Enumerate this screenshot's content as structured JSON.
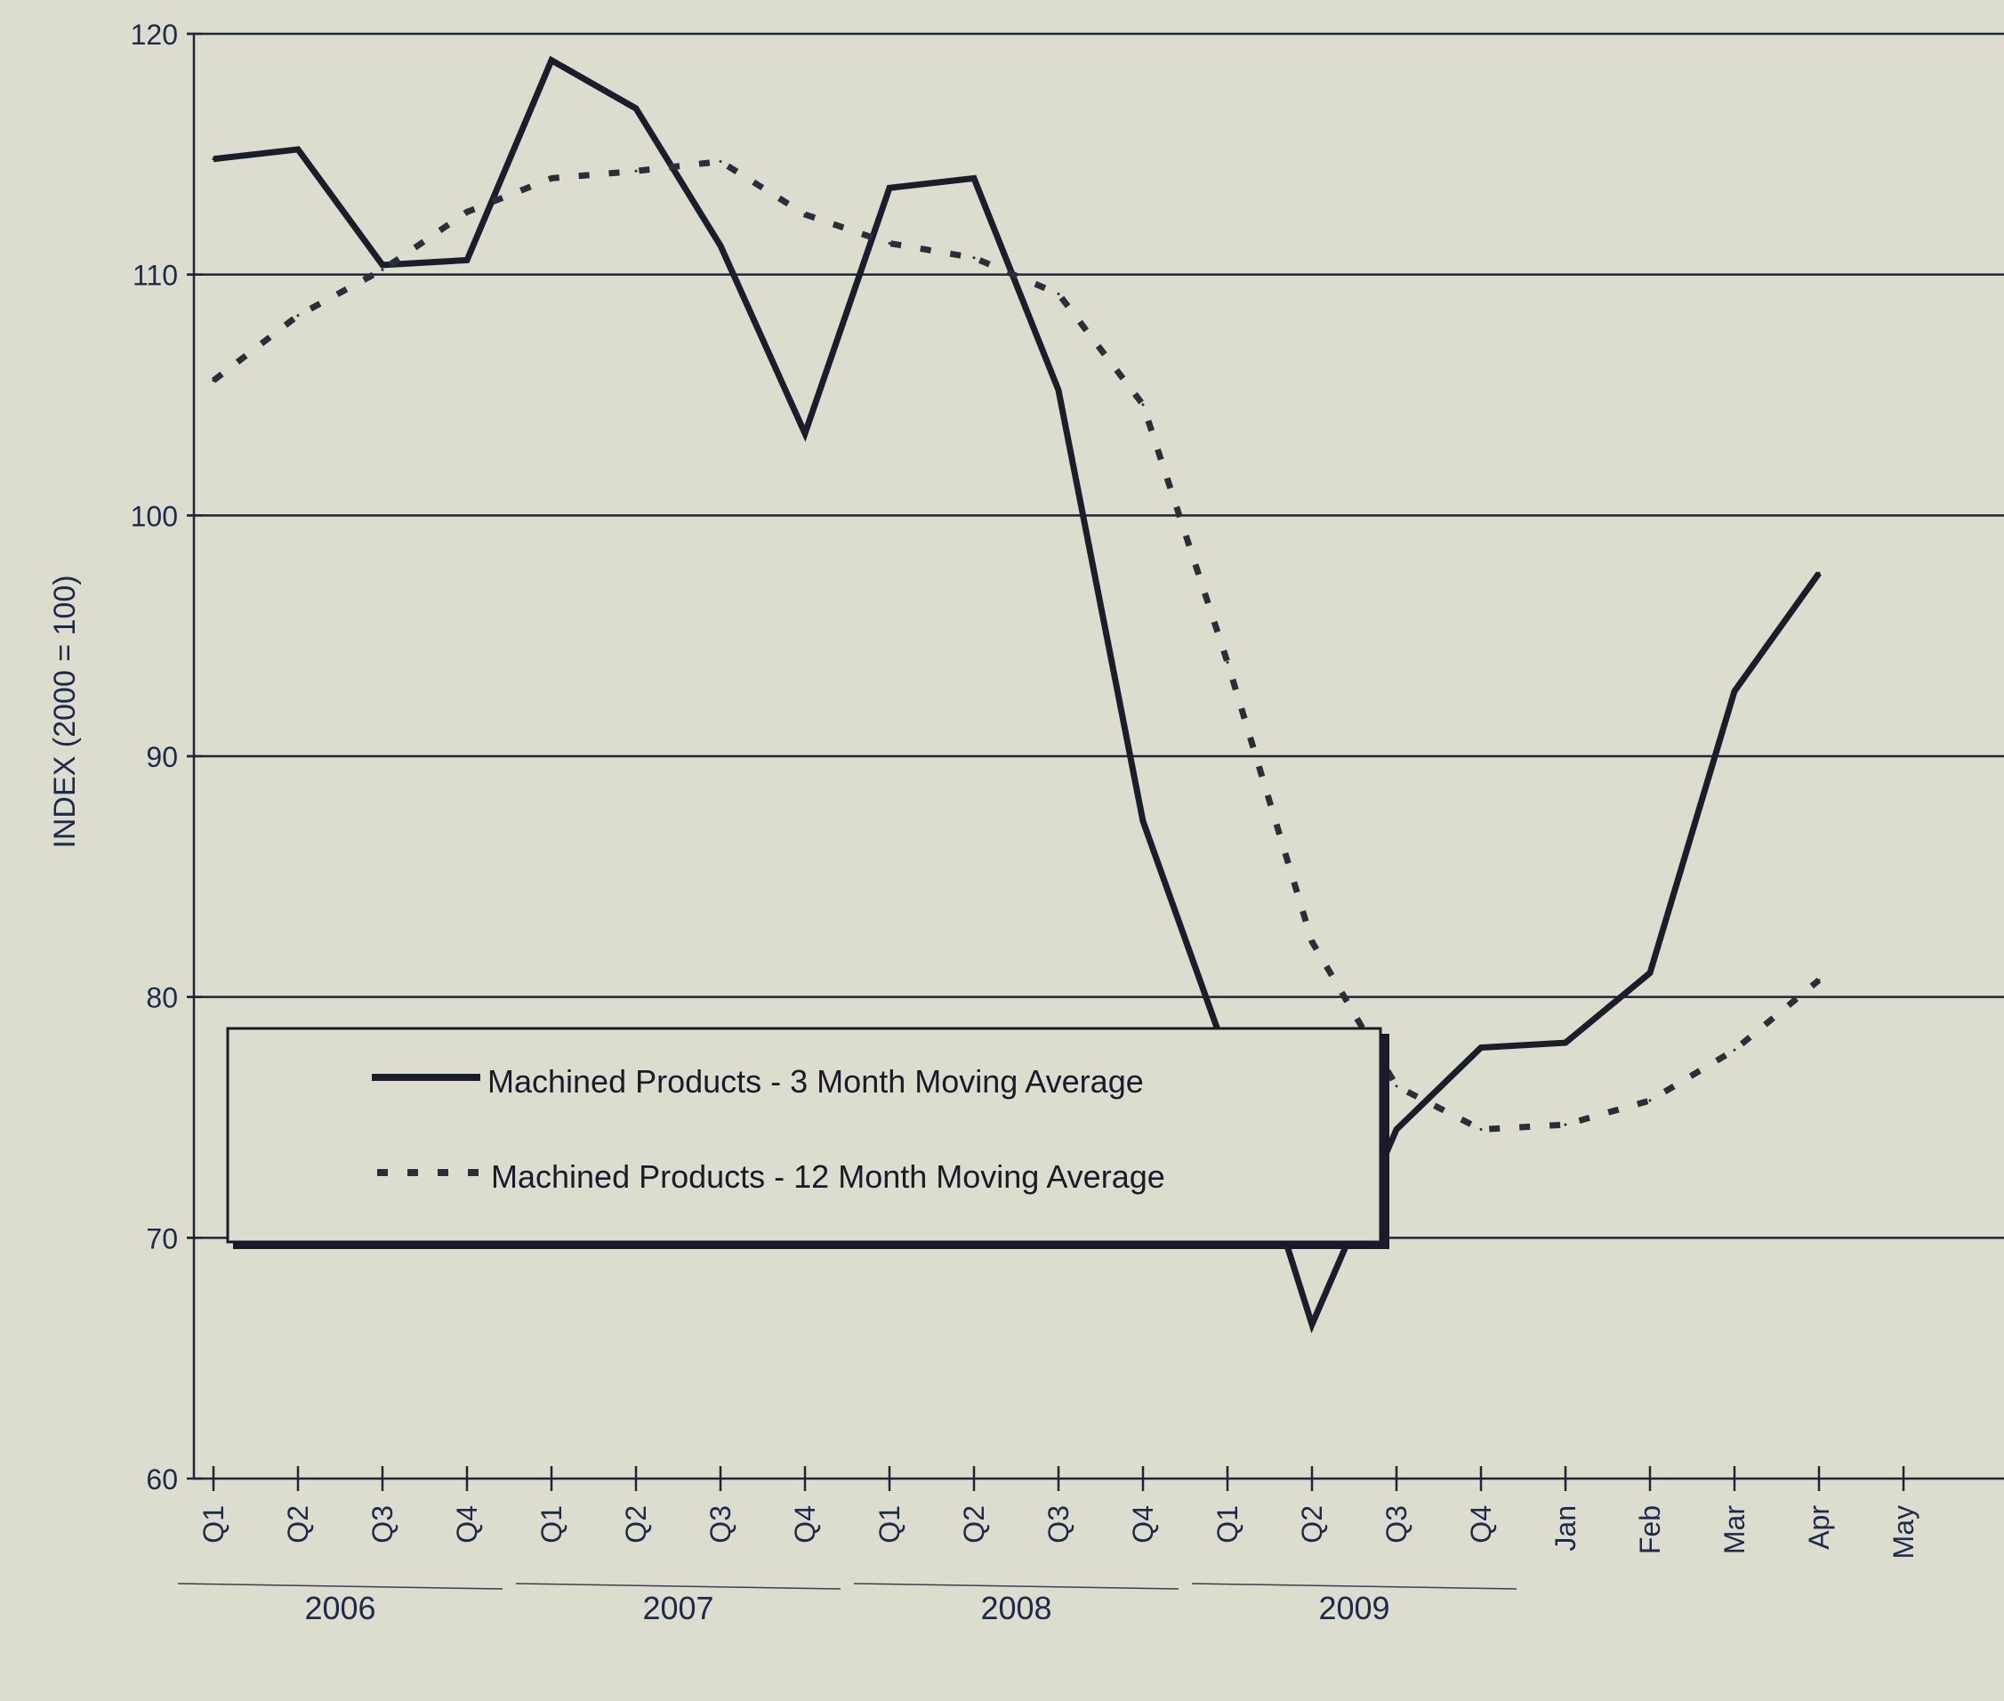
{
  "chart_data": {
    "type": "line",
    "ylabel": "INDEX (2000 = 100)",
    "ylim": [
      60,
      120
    ],
    "yticks": [
      60,
      70,
      80,
      90,
      100,
      110,
      120
    ],
    "grid": "horizontal",
    "x_tick_labels": [
      "Q1",
      "Q2",
      "Q3",
      "Q4",
      "Q1",
      "Q2",
      "Q3",
      "Q4",
      "Q1",
      "Q2",
      "Q3",
      "Q4",
      "Q1",
      "Q2",
      "Q3",
      "Q4",
      "Jan",
      "Feb",
      "Mar",
      "Apr",
      "May"
    ],
    "year_groups": [
      {
        "label": "2006",
        "from": 0,
        "to": 3
      },
      {
        "label": "2007",
        "from": 4,
        "to": 7
      },
      {
        "label": "2008",
        "from": 8,
        "to": 11
      },
      {
        "label": "2009",
        "from": 12,
        "to": 15
      }
    ],
    "legend_position": "lower-left",
    "series": [
      {
        "name": "Machined Products - 3 Month Moving Average",
        "style": "solid",
        "color": "#1a1d2a",
        "values": [
          114.8,
          115.2,
          110.4,
          110.6,
          118.9,
          116.9,
          111.2,
          103.4,
          113.6,
          114.0,
          105.2,
          87.3,
          77.5,
          66.4,
          74.5,
          77.9,
          78.1,
          81.0,
          92.7,
          97.6,
          null
        ]
      },
      {
        "name": "Machined Products - 12 Month Moving Average",
        "style": "dashed",
        "color": "#2a2d3a",
        "values": [
          105.6,
          108.3,
          110.2,
          112.6,
          114.0,
          114.3,
          114.7,
          112.5,
          111.3,
          110.7,
          109.2,
          104.6,
          93.9,
          82.3,
          76.3,
          74.5,
          74.7,
          75.7,
          77.8,
          80.7,
          null
        ]
      }
    ]
  }
}
